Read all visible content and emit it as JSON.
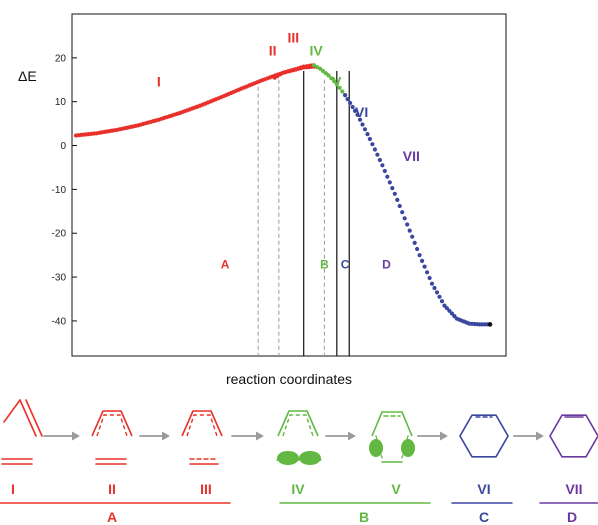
{
  "chart_data": {
    "type": "scatter",
    "title": "",
    "xlabel": "reaction coordinates",
    "ylabel": "ΔE",
    "ylim": [
      -48,
      30
    ],
    "x_range": [
      0,
      100
    ],
    "yticks": [
      "20",
      "10",
      "0",
      "-10",
      "-20",
      "-30",
      "-40"
    ],
    "ytick_values": [
      20,
      10,
      0,
      -10,
      -20,
      -30,
      -40
    ],
    "grid": false,
    "series": [
      {
        "name": "I",
        "color": "#e8312a",
        "x": [
          0,
          5,
          10,
          15,
          20,
          25,
          30,
          35,
          40,
          45,
          50,
          55,
          57.5
        ],
        "y": [
          2.3,
          2.8,
          3.6,
          4.6,
          5.9,
          7.4,
          9.1,
          11.0,
          13.0,
          14.9,
          16.6,
          17.8,
          18.0
        ]
      },
      {
        "name": "II-III",
        "color": "#e8312a",
        "x": [
          48,
          50,
          53,
          55,
          56.5,
          57.5
        ],
        "y": [
          15.5,
          16.6,
          17.4,
          18.0,
          18.2,
          18.3
        ]
      },
      {
        "name": "IV-V",
        "color": "#62b842",
        "x": [
          57.5,
          59,
          61,
          63,
          65
        ],
        "y": [
          18.3,
          17.5,
          16.0,
          14.0,
          11.5
        ]
      },
      {
        "name": "VI-VII",
        "color": "#3a47a0",
        "x": [
          65,
          68,
          71,
          74,
          77,
          80,
          83,
          86,
          89,
          92,
          95,
          97.5,
          100
        ],
        "y": [
          11.5,
          7.0,
          1.5,
          -4.5,
          -11.0,
          -18.0,
          -25.0,
          -31.5,
          -36.5,
          -39.5,
          -40.6,
          -40.8,
          -40.8
        ]
      }
    ],
    "boundaries": {
      "dashed_x": [
        44,
        49,
        60
      ],
      "solid_x": [
        55,
        63,
        66
      ]
    },
    "stage_labels": [
      {
        "text": "I",
        "color": "#e8312a",
        "x": 20,
        "y": 13.5
      },
      {
        "text": "II",
        "color": "#e8312a",
        "x": 47.5,
        "y": 20.5
      },
      {
        "text": "III",
        "color": "#e8312a",
        "x": 52.5,
        "y": 23.5
      },
      {
        "text": "IV",
        "color": "#62b842",
        "x": 58,
        "y": 20.5
      },
      {
        "text": "V",
        "color": "#62b842",
        "x": 63,
        "y": 13.5
      },
      {
        "text": "VI",
        "color": "#3a47a0",
        "x": 69,
        "y": 6.5
      },
      {
        "text": "VII",
        "color": "#6a3aa0",
        "x": 81,
        "y": -3.5
      }
    ],
    "region_labels": [
      {
        "text": "A",
        "color": "#e8312a",
        "x": 36,
        "y": -28
      },
      {
        "text": "B",
        "color": "#62b842",
        "x": 60,
        "y": -28
      },
      {
        "text": "C",
        "color": "#3a47a0",
        "x": 65,
        "y": -28
      },
      {
        "text": "D",
        "color": "#6a3aa0",
        "x": 75,
        "y": -28
      }
    ]
  },
  "scheme": {
    "colors": {
      "red": "#e8312a",
      "green": "#62b842",
      "blue": "#3a47a0",
      "purple": "#6a3aa0",
      "arrow": "#9a9a9a"
    },
    "structures": [
      {
        "label": "I",
        "color": "#e8312a"
      },
      {
        "label": "II",
        "color": "#e8312a"
      },
      {
        "label": "III",
        "color": "#e8312a"
      },
      {
        "label": "IV",
        "color": "#62b842"
      },
      {
        "label": "V",
        "color": "#62b842"
      },
      {
        "label": "VI",
        "color": "#3a47a0"
      },
      {
        "label": "VII",
        "color": "#6a3aa0"
      }
    ],
    "groups": [
      {
        "label": "A",
        "color": "#e8312a"
      },
      {
        "label": "B",
        "color": "#62b842"
      },
      {
        "label": "C",
        "color": "#3a47a0"
      },
      {
        "label": "D",
        "color": "#6a3aa0"
      }
    ]
  }
}
